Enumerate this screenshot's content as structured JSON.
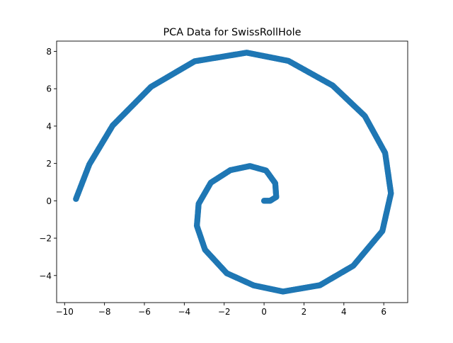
{
  "chart_data": {
    "type": "scatter",
    "title": "PCA Data for SwissRollHole",
    "xlabel": "",
    "ylabel": "",
    "xlim": [
      -10.4,
      7.2
    ],
    "ylim": [
      -5.45,
      8.55
    ],
    "xticks": [
      -10,
      -8,
      -6,
      -4,
      -2,
      0,
      2,
      4,
      6
    ],
    "xtick_labels": [
      "−10",
      "−8",
      "−6",
      "−4",
      "−2",
      "0",
      "2",
      "4",
      "6"
    ],
    "yticks": [
      -4,
      -2,
      0,
      2,
      4,
      6,
      8
    ],
    "ytick_labels": [
      "−4",
      "−2",
      "0",
      "2",
      "4",
      "6",
      "8"
    ],
    "grid": false,
    "legend": null,
    "color": "#1f77b4",
    "series": [
      {
        "name": "",
        "note": "Points lie along an Archimedean spiral r = 1.5*theta centered near the origin, theta from 0 to about 2*pi; values sampled along the curve.",
        "x": [
          0.0,
          0.3,
          0.61,
          0.56,
          0.1,
          -0.71,
          -1.69,
          -2.67,
          -3.28,
          -3.37,
          -2.96,
          -1.87,
          -0.52,
          0.95,
          2.8,
          4.47,
          5.93,
          6.36,
          6.07,
          5.05,
          3.44,
          1.22,
          -0.87,
          -3.48,
          -5.67,
          -7.59,
          -8.76,
          -9.43
        ],
        "y": [
          0.0,
          0.0,
          0.2,
          0.94,
          1.62,
          1.86,
          1.64,
          0.97,
          -0.16,
          -1.34,
          -2.62,
          -3.88,
          -4.53,
          -4.86,
          -4.52,
          -3.48,
          -1.62,
          0.4,
          2.56,
          4.54,
          6.17,
          7.49,
          7.93,
          7.47,
          6.1,
          4.03,
          1.95,
          0.1
        ]
      }
    ]
  }
}
